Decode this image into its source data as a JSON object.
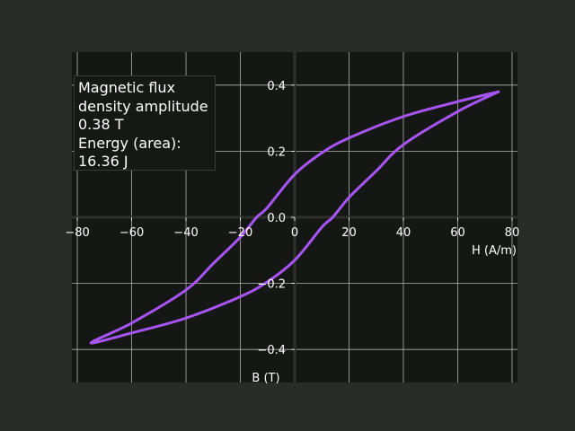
{
  "chart_data": {
    "type": "line",
    "title": "",
    "xlabel": "H (A/m)",
    "ylabel": "B (T)",
    "xlim": [
      -82,
      82
    ],
    "ylim": [
      -0.5,
      0.5
    ],
    "xticks": [
      -80,
      -60,
      -40,
      -20,
      0,
      20,
      40,
      60,
      80
    ],
    "xtick_labels": [
      "−80",
      "−60",
      "−40",
      "−20",
      "0",
      "20",
      "40",
      "60",
      "80"
    ],
    "yticks": [
      -0.4,
      -0.2,
      0.0,
      0.2,
      0.4
    ],
    "ytick_labels": [
      "−0.4",
      "−0.2",
      "0.0",
      "0.2",
      "0.4"
    ],
    "grid": true,
    "series": [
      {
        "color": "#a855f7",
        "x": [
          75,
          60,
          40,
          20,
          10,
          0,
          -10,
          -14,
          -20,
          -30,
          -40,
          -60,
          -75,
          -60,
          -40,
          -20,
          -10,
          0,
          10,
          14,
          20,
          30,
          40,
          60,
          75
        ],
        "y": [
          0.38,
          0.35,
          0.305,
          0.24,
          0.195,
          0.13,
          0.03,
          0.0,
          -0.06,
          -0.14,
          -0.22,
          -0.32,
          -0.38,
          -0.35,
          -0.305,
          -0.24,
          -0.195,
          -0.13,
          -0.03,
          0.0,
          0.06,
          0.14,
          0.22,
          0.32,
          0.38
        ]
      }
    ]
  },
  "info": {
    "line1": "Magnetic flux",
    "line2": "density amplitude",
    "line3": "0.38 T",
    "line4": "Energy (area):",
    "line5": "16.36 J"
  }
}
